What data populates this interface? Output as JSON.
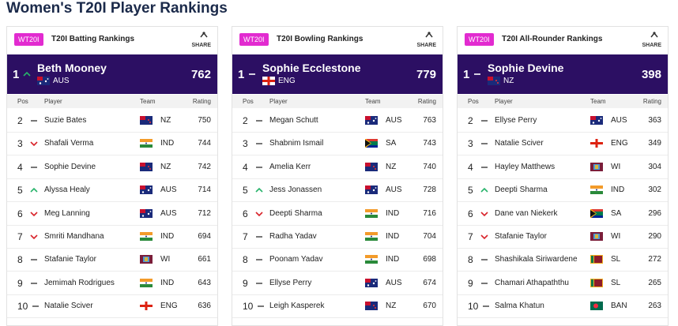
{
  "header": {
    "title": "Women's T20I Player Rankings"
  },
  "panels": [
    {
      "badge": "WT20I",
      "title": "T20I Batting Rankings",
      "share": "SHARE",
      "columns": [
        "Pos",
        "Player",
        "Team",
        "Rating"
      ],
      "leader": {
        "rank": "1",
        "movement": "up",
        "name": "Beth Mooney",
        "team": "AUS",
        "rating": "762"
      },
      "rows": [
        {
          "rank": "2",
          "movement": "same",
          "name": "Suzie Bates",
          "team": "NZ",
          "rating": "750"
        },
        {
          "rank": "3",
          "movement": "down",
          "name": "Shafali Verma",
          "team": "IND",
          "rating": "744"
        },
        {
          "rank": "4",
          "movement": "same",
          "name": "Sophie Devine",
          "team": "NZ",
          "rating": "742"
        },
        {
          "rank": "5",
          "movement": "up",
          "name": "Alyssa Healy",
          "team": "AUS",
          "rating": "714"
        },
        {
          "rank": "6",
          "movement": "down",
          "name": "Meg Lanning",
          "team": "AUS",
          "rating": "712"
        },
        {
          "rank": "7",
          "movement": "down",
          "name": "Smriti Mandhana",
          "team": "IND",
          "rating": "694"
        },
        {
          "rank": "8",
          "movement": "same",
          "name": "Stafanie Taylor",
          "team": "WI",
          "rating": "661"
        },
        {
          "rank": "9",
          "movement": "same",
          "name": "Jemimah Rodrigues",
          "team": "IND",
          "rating": "643"
        },
        {
          "rank": "10",
          "movement": "same",
          "name": "Natalie Sciver",
          "team": "ENG",
          "rating": "636"
        }
      ]
    },
    {
      "badge": "WT20I",
      "title": "T20I Bowling Rankings",
      "share": "SHARE",
      "columns": [
        "Pos",
        "Player",
        "Team",
        "Rating"
      ],
      "leader": {
        "rank": "1",
        "movement": "same",
        "name": "Sophie Ecclestone",
        "team": "ENG",
        "rating": "779"
      },
      "rows": [
        {
          "rank": "2",
          "movement": "same",
          "name": "Megan Schutt",
          "team": "AUS",
          "rating": "763"
        },
        {
          "rank": "3",
          "movement": "same",
          "name": "Shabnim Ismail",
          "team": "SA",
          "rating": "743"
        },
        {
          "rank": "4",
          "movement": "same",
          "name": "Amelia Kerr",
          "team": "NZ",
          "rating": "740"
        },
        {
          "rank": "5",
          "movement": "up",
          "name": "Jess Jonassen",
          "team": "AUS",
          "rating": "728"
        },
        {
          "rank": "6",
          "movement": "down",
          "name": "Deepti Sharma",
          "team": "IND",
          "rating": "716"
        },
        {
          "rank": "7",
          "movement": "same",
          "name": "Radha Yadav",
          "team": "IND",
          "rating": "704"
        },
        {
          "rank": "8",
          "movement": "same",
          "name": "Poonam Yadav",
          "team": "IND",
          "rating": "698"
        },
        {
          "rank": "9",
          "movement": "same",
          "name": "Ellyse Perry",
          "team": "AUS",
          "rating": "674"
        },
        {
          "rank": "10",
          "movement": "same",
          "name": "Leigh Kasperek",
          "team": "NZ",
          "rating": "670"
        }
      ]
    },
    {
      "badge": "WT20I",
      "title": "T20I All-Rounder Rankings",
      "share": "SHARE",
      "columns": [
        "Pos",
        "Player",
        "Team",
        "Rating"
      ],
      "leader": {
        "rank": "1",
        "movement": "same",
        "name": "Sophie Devine",
        "team": "NZ",
        "rating": "398"
      },
      "rows": [
        {
          "rank": "2",
          "movement": "same",
          "name": "Ellyse Perry",
          "team": "AUS",
          "rating": "363"
        },
        {
          "rank": "3",
          "movement": "same",
          "name": "Natalie Sciver",
          "team": "ENG",
          "rating": "349"
        },
        {
          "rank": "4",
          "movement": "same",
          "name": "Hayley Matthews",
          "team": "WI",
          "rating": "304"
        },
        {
          "rank": "5",
          "movement": "up",
          "name": "Deepti Sharma",
          "team": "IND",
          "rating": "302"
        },
        {
          "rank": "6",
          "movement": "down",
          "name": "Dane van Niekerk",
          "team": "SA",
          "rating": "296"
        },
        {
          "rank": "7",
          "movement": "down",
          "name": "Stafanie Taylor",
          "team": "WI",
          "rating": "290"
        },
        {
          "rank": "8",
          "movement": "same",
          "name": "Shashikala Siriwardene",
          "team": "SL",
          "rating": "272"
        },
        {
          "rank": "9",
          "movement": "same",
          "name": "Chamari Athapaththu",
          "team": "SL",
          "rating": "265"
        },
        {
          "rank": "10",
          "movement": "same",
          "name": "Salma Khatun",
          "team": "BAN",
          "rating": "263"
        }
      ]
    }
  ]
}
